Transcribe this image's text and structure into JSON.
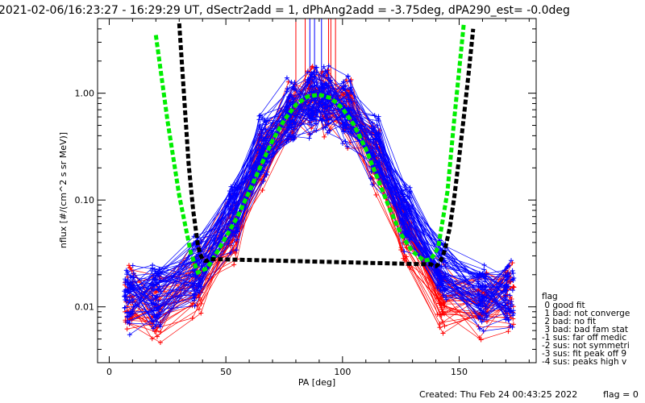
{
  "title": "2021-02-06/16:23:27 - 16:29:29 UT, dSectr2add = 1, dPhAng2add = -3.75deg, dPA290_est=  -0.0deg",
  "footer": {
    "created": "Created: Thu Feb 24 00:43:25 2022",
    "flag": "flag = 0"
  },
  "legend": {
    "title": "flag",
    "items": [
      " 0 good fit",
      " 1 bad: not converge",
      " 2 bad: no fit",
      " 3 bad: bad fam stat",
      "-1 sus: far off medic",
      "-2 sus: not symmetri",
      "-3 sus: fit peak off 9",
      "-4 sus: peaks high v"
    ]
  },
  "chart_data": {
    "type": "line",
    "title": "2021-02-06/16:23:27 - 16:29:29 UT, dSectr2add = 1, dPhAng2add = -3.75deg, dPA290_est=  -0.0deg",
    "xlabel": "PA [deg]",
    "ylabel": "nflux [#/(cm^2 s sr MeV)]",
    "xlim": [
      -5,
      183
    ],
    "ylim": [
      0.003,
      5
    ],
    "yscale": "log",
    "x_ticks": [
      0,
      50,
      100,
      150
    ],
    "x_tick_labels": [
      "0",
      "50",
      "100",
      "150"
    ],
    "y_ticks": [
      0.01,
      0.1,
      1.0
    ],
    "y_tick_labels": [
      "0.01",
      "0.10",
      "1.00"
    ],
    "grid": false,
    "colors": {
      "red": "#ff0000",
      "blue": "#0000ff",
      "green": "#00ee00",
      "black": "#000000"
    },
    "pa_bins": [
      8.5,
      20,
      37.5,
      53,
      66,
      78,
      87,
      93,
      102,
      114,
      127,
      142.5,
      160,
      171.5
    ],
    "series": [
      {
        "color": "#ff0000",
        "count": 40,
        "profile": [
          0.011,
          0.01,
          0.017,
          0.048,
          0.23,
          0.6,
          0.85,
          0.88,
          0.65,
          0.26,
          0.05,
          0.012,
          0.011,
          0.012
        ]
      },
      {
        "color": "#0000ff",
        "count": 60,
        "profile": [
          0.012,
          0.012,
          0.022,
          0.07,
          0.3,
          0.66,
          0.86,
          0.86,
          0.66,
          0.3,
          0.07,
          0.022,
          0.013,
          0.013
        ]
      },
      {
        "color": "#00ee00",
        "style": "dashed",
        "x": [
          20,
          25,
          30,
          35,
          38,
          42,
          46,
          50,
          55,
          60,
          65,
          70,
          75,
          80,
          85,
          90,
          95,
          100,
          105,
          110,
          115,
          120,
          125,
          130,
          135,
          138,
          141,
          145,
          148,
          152
        ],
        "y": [
          3.5,
          0.55,
          0.11,
          0.032,
          0.021,
          0.023,
          0.032,
          0.045,
          0.07,
          0.12,
          0.21,
          0.36,
          0.56,
          0.78,
          0.93,
          0.97,
          0.9,
          0.72,
          0.5,
          0.3,
          0.16,
          0.085,
          0.048,
          0.033,
          0.027,
          0.028,
          0.036,
          0.12,
          0.6,
          4.5
        ]
      },
      {
        "color": "#000000",
        "style": "dashed",
        "x": [
          30,
          32,
          34,
          36,
          38,
          39,
          40,
          41,
          42,
          43,
          138,
          139,
          140,
          141,
          142,
          143,
          144,
          146,
          148,
          150,
          152,
          154,
          156
        ],
        "y": [
          4.5,
          1.0,
          0.22,
          0.08,
          0.038,
          0.031,
          0.028,
          0.027,
          0.027,
          0.028,
          0.025,
          0.024,
          0.024,
          0.025,
          0.027,
          0.03,
          0.035,
          0.055,
          0.11,
          0.25,
          0.6,
          1.5,
          4.0
        ]
      }
    ]
  }
}
